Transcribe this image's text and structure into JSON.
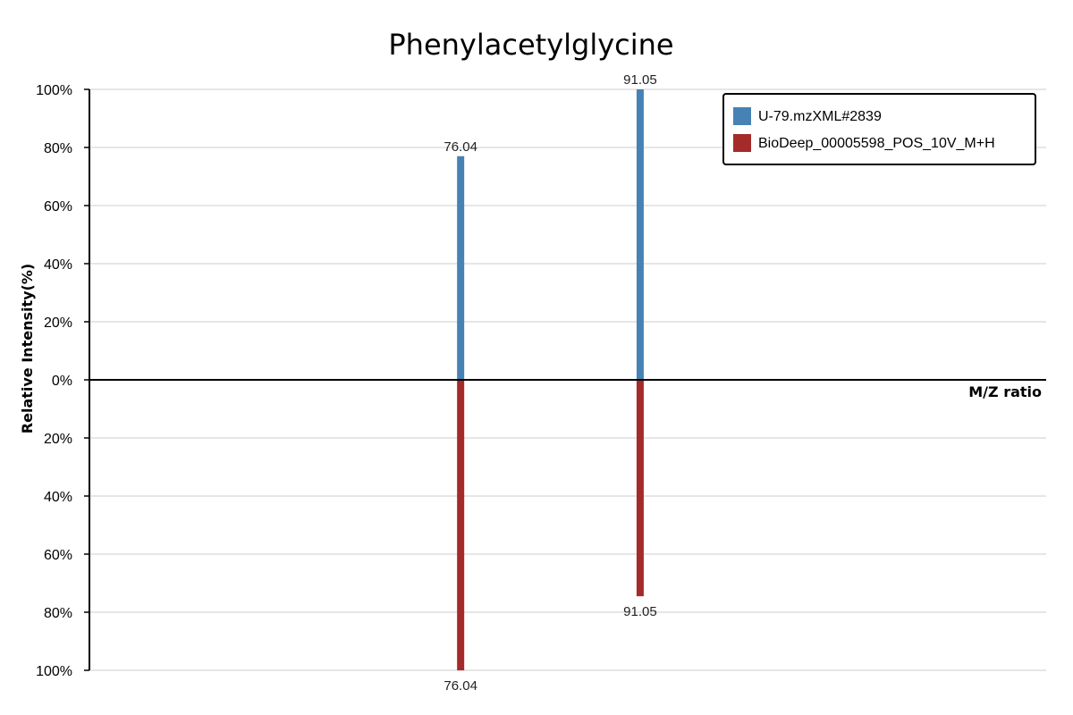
{
  "chart_data": {
    "type": "bar",
    "title": "Phenylacetylglycine",
    "xlabel": "M/Z ratio",
    "ylabel": "Relative Intensity(%)",
    "ylim": [
      -100,
      100
    ],
    "y_ticks": [
      "100%",
      "80%",
      "60%",
      "40%",
      "20%",
      "0%",
      "20%",
      "40%",
      "60%",
      "80%",
      "100%"
    ],
    "y_tick_values": [
      100,
      80,
      60,
      40,
      20,
      0,
      -20,
      -40,
      -60,
      -80,
      -100
    ],
    "grid": true,
    "legend_position": "top-right",
    "series": [
      {
        "name": "U-79.mzXML#2839",
        "color": "#4682b4",
        "direction": "up",
        "peaks": [
          {
            "mz": 76.04,
            "label": "76.04",
            "intensity": 77
          },
          {
            "mz": 91.05,
            "label": "91.05",
            "intensity": 100
          }
        ]
      },
      {
        "name": "BioDeep_00005598_POS_10V_M+H",
        "color": "#a52a2a",
        "direction": "down",
        "peaks": [
          {
            "mz": 76.04,
            "label": "76.04",
            "intensity": 100
          },
          {
            "mz": 91.05,
            "label": "91.05",
            "intensity": 74.5
          }
        ]
      }
    ],
    "x_domain": [
      45,
      125
    ]
  }
}
